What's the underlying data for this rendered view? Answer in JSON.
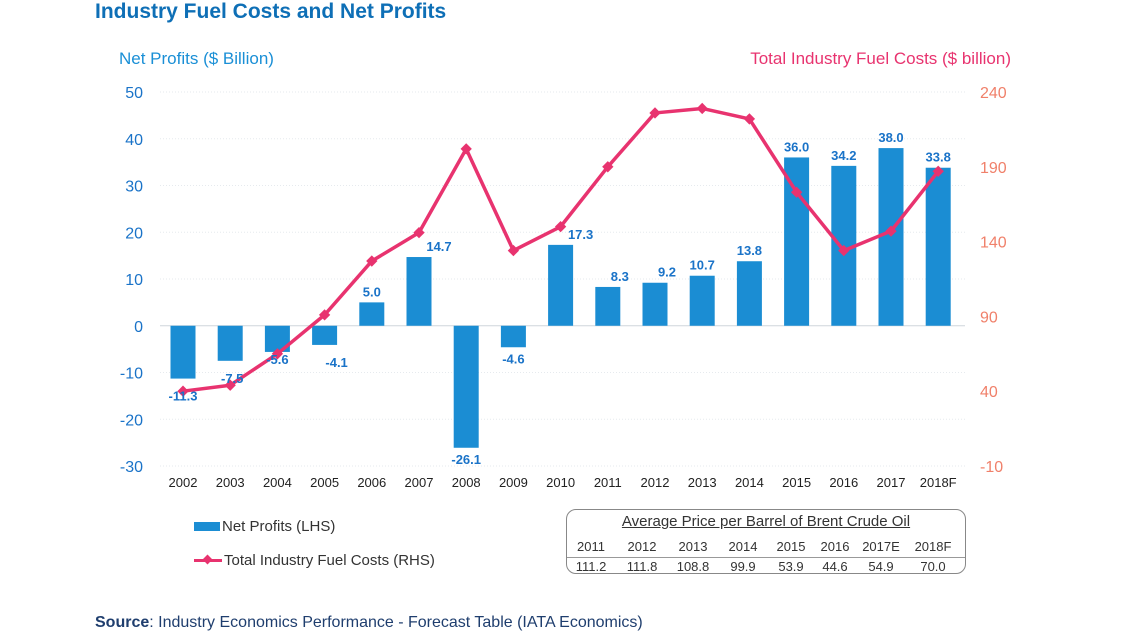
{
  "title": "Industry Fuel Costs and Net Profits",
  "left_axis_title": "Net Profits ($ Billion)",
  "right_axis_title": "Total Industry Fuel Costs ($ billion)",
  "legend": {
    "bar_label": "Net Profits (LHS)",
    "line_label": "Total Industry Fuel Costs (RHS)"
  },
  "brent": {
    "title": "Average Price per Barrel of Brent Crude Oil",
    "years": [
      "2011",
      "2012",
      "2013",
      "2014",
      "2015",
      "2016",
      "2017E",
      "2018F"
    ],
    "prices": [
      "111.2",
      "111.8",
      "108.8",
      "99.9",
      "53.9",
      "44.6",
      "54.9",
      "70.0"
    ]
  },
  "source": {
    "label": "Source",
    "text": ": Industry Economics Performance - Forecast Table (IATA Economics)"
  },
  "colors": {
    "bar": "#1b8dd3",
    "line": "#e8336f",
    "bar_label": "#1a73c8",
    "left_ticks": "#1a73c8",
    "right_ticks": "#f0806a"
  },
  "chart_data": {
    "type": "bar",
    "title": "Industry Fuel Costs and Net Profits",
    "categories": [
      "2002",
      "2003",
      "2004",
      "2005",
      "2006",
      "2007",
      "2008",
      "2009",
      "2010",
      "2011",
      "2012",
      "2013",
      "2014",
      "2015",
      "2016",
      "2017",
      "2018F"
    ],
    "series": [
      {
        "name": "Net Profits (LHS)",
        "type": "bar",
        "axis": "left",
        "values": [
          -11.3,
          -7.5,
          -5.6,
          -4.1,
          5.0,
          14.7,
          -26.1,
          -4.6,
          17.3,
          8.3,
          9.2,
          10.7,
          13.8,
          36.0,
          34.2,
          38.0,
          33.8
        ],
        "labels": [
          "-11.3",
          "-7.5",
          "-5.6",
          "-4.1",
          "5.0",
          "14.7",
          "-26.1",
          "-4.6",
          "17.3",
          "8.3",
          "9.2",
          "10.7",
          "13.8",
          "36.0",
          "34.2",
          "38.0",
          "33.8"
        ]
      },
      {
        "name": "Total Industry Fuel Costs (RHS)",
        "type": "line",
        "axis": "right",
        "values": [
          40,
          44,
          65,
          91,
          127,
          146,
          202,
          134,
          150,
          190,
          226,
          229,
          222,
          173,
          134,
          147,
          187
        ]
      }
    ],
    "ylabel": "Net Profits ($ Billion)",
    "y2label": "Total Industry Fuel Costs ($ billion)",
    "ylim": [
      -30,
      50
    ],
    "yticks": [
      -30,
      -20,
      -10,
      0,
      10,
      20,
      30,
      40,
      50
    ],
    "y2lim": [
      -10,
      240
    ],
    "y2ticks": [
      -10,
      40,
      90,
      140,
      190,
      240
    ],
    "grid": true,
    "legend_position": "bottom-left"
  }
}
